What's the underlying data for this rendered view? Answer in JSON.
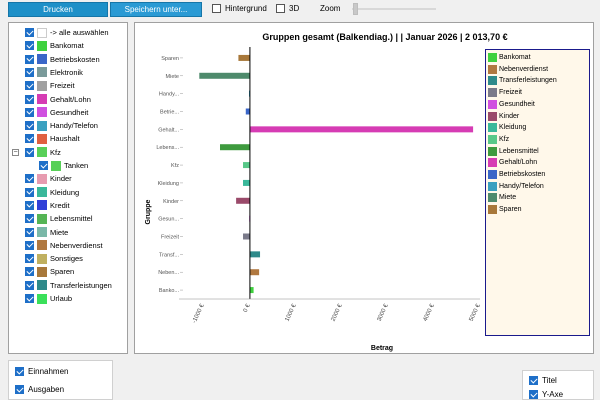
{
  "toolbar": {
    "print_label": "Drucken",
    "save_label": "Speichern unter...",
    "background_label": "Hintergrund",
    "three_d_label": "3D",
    "zoom_label": "Zoom",
    "background_checked": false,
    "three_d_checked": false
  },
  "tree": {
    "items": [
      {
        "label": "-> alle auswählen",
        "color": "#ffffff",
        "checked": true
      },
      {
        "label": "Bankomat",
        "color": "#3fd13f",
        "checked": true
      },
      {
        "label": "Betriebskosten",
        "color": "#3a66c8",
        "checked": true
      },
      {
        "label": "Elektronik",
        "color": "#7a9a9a",
        "checked": true
      },
      {
        "label": "Freizeit",
        "color": "#a0a0a0",
        "checked": true
      },
      {
        "label": "Gehalt/Lohn",
        "color": "#d63cb4",
        "checked": true
      },
      {
        "label": "Gesundheit",
        "color": "#d050e0",
        "checked": true
      },
      {
        "label": "Handy/Telefon",
        "color": "#3aa0c0",
        "checked": true
      },
      {
        "label": "Haushalt",
        "color": "#e06040",
        "checked": true
      },
      {
        "label": "Kfz",
        "color": "#58d058",
        "checked": true,
        "expanded": true
      },
      {
        "label": "Tanken",
        "color": "#58d058",
        "checked": true,
        "child": true
      },
      {
        "label": "Kinder",
        "color": "#e79bb0",
        "checked": true
      },
      {
        "label": "Kleidung",
        "color": "#3ab89a",
        "checked": true
      },
      {
        "label": "Kredit",
        "color": "#3040d8",
        "checked": true
      },
      {
        "label": "Lebensmittel",
        "color": "#55b555",
        "checked": true
      },
      {
        "label": "Miete",
        "color": "#7ab8a8",
        "checked": true
      },
      {
        "label": "Nebenverdienst",
        "color": "#b07840",
        "checked": true
      },
      {
        "label": "Sonstiges",
        "color": "#c0b060",
        "checked": true
      },
      {
        "label": "Sparen",
        "color": "#a8783a",
        "checked": true
      },
      {
        "label": "Transferleistungen",
        "color": "#2e8a8a",
        "checked": true
      },
      {
        "label": "Urlaub",
        "color": "#3ae05a",
        "checked": true
      }
    ]
  },
  "chart_data": {
    "type": "bar",
    "orientation": "horizontal",
    "title": "Gruppen gesamt (Balkendiag.) |  | Januar 2026 | 2 013,70 €",
    "xlabel": "Betrag",
    "ylabel": "Gruppe",
    "xlim": [
      -1150,
      5000
    ],
    "xticks": [
      -1000,
      0,
      1000,
      2000,
      3000,
      4000,
      5000
    ],
    "xtick_labels": [
      "-1000 €",
      "0 €",
      "1000 €",
      "2000 €",
      "3000 €",
      "4000 €",
      "5000 €"
    ],
    "grid": false,
    "legend_position": "right",
    "categories": [
      "Sparen",
      "Miete",
      "Handy...",
      "Betrie...",
      "Gehalt...",
      "Lebens...",
      "Kfz",
      "Kleidung",
      "Kinder",
      "Gesun...",
      "Freizeit",
      "Transf...",
      "Neben...",
      "Banko..."
    ],
    "values": [
      -250,
      -1100,
      -20,
      -90,
      4850,
      -650,
      -150,
      -150,
      -300,
      -15,
      -150,
      220,
      200,
      80
    ],
    "colors": [
      "#a8783a",
      "#4e8a6c",
      "#3aa0c0",
      "#3a66c8",
      "#d63cb4",
      "#3e9a3e",
      "#58c888",
      "#3ab89a",
      "#9a4a6a",
      "#d050e0",
      "#7a7a8a",
      "#2e8a8a",
      "#b07840",
      "#3fd13f"
    ]
  },
  "legend": {
    "items": [
      {
        "label": "Bankomat",
        "color": "#3fd13f"
      },
      {
        "label": "Nebenverdienst",
        "color": "#b07840"
      },
      {
        "label": "Transferleistungen",
        "color": "#2e8a8a"
      },
      {
        "label": "Freizeit",
        "color": "#7a7a8a"
      },
      {
        "label": "Gesundheit",
        "color": "#d050e0"
      },
      {
        "label": "Kinder",
        "color": "#9a4a6a"
      },
      {
        "label": "Kleidung",
        "color": "#3ab89a"
      },
      {
        "label": "Kfz",
        "color": "#58c888"
      },
      {
        "label": "Lebensmittel",
        "color": "#3e9a3e"
      },
      {
        "label": "Gehalt/Lohn",
        "color": "#d63cb4"
      },
      {
        "label": "Betriebskosten",
        "color": "#3a66c8"
      },
      {
        "label": "Handy/Telefon",
        "color": "#3aa0c0"
      },
      {
        "label": "Miete",
        "color": "#4e8a6c"
      },
      {
        "label": "Sparen",
        "color": "#a8783a"
      }
    ]
  },
  "bottom_left": {
    "income_label": "Einnahmen",
    "expenses_label": "Ausgaben",
    "income_checked": true,
    "expenses_checked": true
  },
  "bottom_right": {
    "title_label": "Titel",
    "yaxis_label": "Y-Axe",
    "title_checked": true,
    "yaxis_checked": true
  }
}
